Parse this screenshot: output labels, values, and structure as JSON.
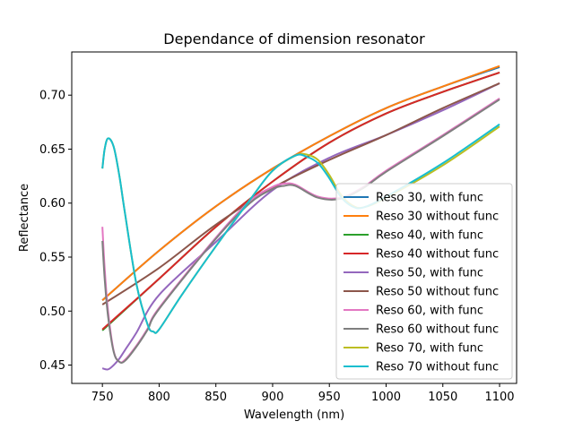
{
  "chart_data": {
    "type": "line",
    "title": "Dependance of dimension resonator",
    "xlabel": "Wavelength (nm)",
    "ylabel": "Reflectance",
    "xlim": [
      723,
      1115
    ],
    "ylim": [
      0.433,
      0.74
    ],
    "xticks": [
      750,
      800,
      850,
      900,
      950,
      1000,
      1050,
      1100
    ],
    "xtick_labels": [
      "750",
      "800",
      "850",
      "900",
      "950",
      "1000",
      "1050",
      "1100"
    ],
    "yticks": [
      0.45,
      0.5,
      0.55,
      0.6,
      0.65,
      0.7
    ],
    "ytick_labels": [
      "0.45",
      "0.50",
      "0.55",
      "0.60",
      "0.65",
      "0.70"
    ],
    "grid": false,
    "legend_position": "lower-right",
    "series": [
      {
        "name": "Reso 30, with func",
        "color": "#1f77b4",
        "x": [
          750,
          800,
          850,
          900,
          950,
          1000,
          1050,
          1100
        ],
        "y": [
          0.51,
          0.556,
          0.597,
          0.632,
          0.662,
          0.688,
          0.708,
          0.726
        ]
      },
      {
        "name": "Reso 30 without func",
        "color": "#ff7f0e",
        "x": [
          750,
          800,
          850,
          900,
          950,
          1000,
          1050,
          1100
        ],
        "y": [
          0.51,
          0.556,
          0.597,
          0.632,
          0.662,
          0.688,
          0.708,
          0.727
        ]
      },
      {
        "name": "Reso 40, with func",
        "color": "#2ca02c",
        "x": [
          750,
          800,
          850,
          900,
          950,
          1000,
          1050,
          1100
        ],
        "y": [
          0.482,
          0.53,
          0.578,
          0.62,
          0.656,
          0.683,
          0.703,
          0.721
        ]
      },
      {
        "name": "Reso 40 without func",
        "color": "#d62728",
        "x": [
          750,
          800,
          850,
          900,
          950,
          1000,
          1050,
          1100
        ],
        "y": [
          0.483,
          0.53,
          0.578,
          0.62,
          0.656,
          0.683,
          0.703,
          0.721
        ]
      },
      {
        "name": "Reso 50, with func",
        "color": "#9467bd",
        "x": [
          750,
          755,
          760,
          765,
          770,
          780,
          800,
          850,
          900,
          950,
          1000,
          1050,
          1100
        ],
        "y": [
          0.447,
          0.446,
          0.45,
          0.456,
          0.464,
          0.48,
          0.515,
          0.564,
          0.612,
          0.642,
          0.663,
          0.686,
          0.711
        ]
      },
      {
        "name": "Reso 50 without func",
        "color": "#8c564b",
        "x": [
          750,
          800,
          850,
          900,
          950,
          1000,
          1050,
          1100
        ],
        "y": [
          0.506,
          0.54,
          0.58,
          0.614,
          0.64,
          0.663,
          0.688,
          0.711
        ]
      },
      {
        "name": "Reso 60, with func",
        "color": "#e377c2",
        "x": [
          750,
          752,
          755,
          760,
          765,
          770,
          780,
          790,
          800,
          850,
          880,
          900,
          910,
          920,
          940,
          960,
          980,
          1000,
          1050,
          1100
        ],
        "y": [
          0.578,
          0.54,
          0.5,
          0.463,
          0.453,
          0.455,
          0.468,
          0.484,
          0.503,
          0.568,
          0.602,
          0.615,
          0.618,
          0.617,
          0.606,
          0.605,
          0.615,
          0.63,
          0.663,
          0.697
        ]
      },
      {
        "name": "Reso 60 without func",
        "color": "#7f7f7f",
        "x": [
          750,
          752,
          755,
          760,
          765,
          770,
          780,
          790,
          800,
          850,
          880,
          900,
          910,
          920,
          940,
          960,
          980,
          1000,
          1050,
          1100
        ],
        "y": [
          0.565,
          0.53,
          0.495,
          0.462,
          0.453,
          0.454,
          0.467,
          0.483,
          0.502,
          0.567,
          0.6,
          0.613,
          0.616,
          0.616,
          0.605,
          0.604,
          0.614,
          0.629,
          0.662,
          0.696
        ]
      },
      {
        "name": "Reso 70, with func",
        "color": "#bcbd22",
        "x": [
          750,
          752,
          755,
          760,
          765,
          770,
          780,
          790,
          795,
          800,
          820,
          850,
          880,
          900,
          920,
          930,
          940,
          950,
          960,
          970,
          980,
          1000,
          1050,
          1100
        ],
        "y": [
          0.632,
          0.65,
          0.66,
          0.652,
          0.625,
          0.59,
          0.525,
          0.487,
          0.481,
          0.483,
          0.515,
          0.56,
          0.603,
          0.63,
          0.644,
          0.645,
          0.64,
          0.626,
          0.608,
          0.598,
          0.596,
          0.605,
          0.635,
          0.671
        ]
      },
      {
        "name": "Reso 70 without func",
        "color": "#17becf",
        "x": [
          750,
          752,
          755,
          760,
          765,
          770,
          780,
          790,
          795,
          800,
          820,
          850,
          880,
          900,
          920,
          930,
          940,
          950,
          960,
          970,
          980,
          1000,
          1050,
          1100
        ],
        "y": [
          0.632,
          0.65,
          0.66,
          0.652,
          0.625,
          0.59,
          0.525,
          0.487,
          0.481,
          0.483,
          0.515,
          0.56,
          0.603,
          0.63,
          0.644,
          0.643,
          0.637,
          0.623,
          0.606,
          0.597,
          0.596,
          0.606,
          0.637,
          0.673
        ]
      }
    ]
  }
}
